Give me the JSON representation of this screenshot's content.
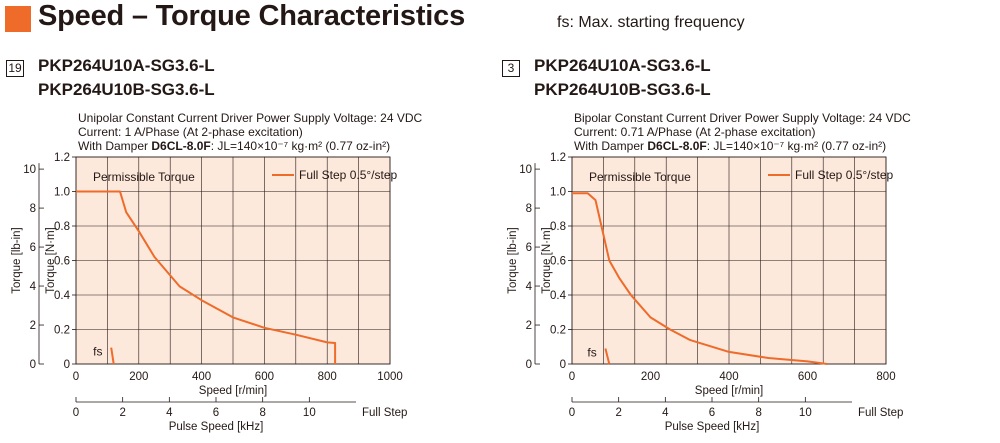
{
  "header": {
    "title": "Speed – Torque Characteristics",
    "subtitle": "fs: Max. starting frequency",
    "accent_color": "#ee6b2a"
  },
  "chart_data": [
    {
      "type": "line",
      "badge": "19",
      "model_line_1": "PKP264U10A-SG3.6-L",
      "model_line_2": "PKP264U10B-SG3.6-L",
      "condition_1": "Unipolar Constant Current Driver  Power Supply Voltage: 24 VDC",
      "condition_2": "Current: 1 A/Phase (At 2-phase excitation)",
      "condition_3_prefix": "With Damper ",
      "condition_3_damper": "D6CL-8.0F",
      "condition_3_suffix": ": JL=140×10⁻⁷ kg·m² (0.77 oz-in²)",
      "region_label": "Permissible Torque",
      "series": [
        {
          "name": "Full Step 0.5°/step",
          "points": [
            [
              0,
              1.0
            ],
            [
              140,
              1.0
            ],
            [
              160,
              0.88
            ],
            [
              200,
              0.77
            ],
            [
              250,
              0.62
            ],
            [
              330,
              0.45
            ],
            [
              400,
              0.37
            ],
            [
              500,
              0.27
            ],
            [
              600,
              0.21
            ],
            [
              700,
              0.17
            ],
            [
              800,
              0.125
            ],
            [
              825,
              0.122
            ],
            [
              825,
              0.0
            ]
          ],
          "color": "#ee6b2a"
        }
      ],
      "fs_label": "fs",
      "fs_points": [
        [
          112,
          0.095
        ],
        [
          120,
          0.0
        ]
      ],
      "xlabel": "Speed [r/min]",
      "xlim": [
        0,
        1000
      ],
      "xticks": [
        0,
        200,
        400,
        600,
        800,
        1000
      ],
      "xgrid_step": 100,
      "ylabel_left": "Torque [lb-in]",
      "ylabel_right": "Torque [N·m]",
      "ylim": [
        0,
        1.2
      ],
      "yticks": [
        0,
        0.2,
        0.4,
        0.6,
        0.8,
        1.0,
        1.2
      ],
      "ytick_labels": [
        "0",
        "0.2",
        "0.4",
        "0.6",
        "0.8",
        "1.0",
        "1.2"
      ],
      "lbin_ticks": [
        0,
        2,
        4,
        6,
        8,
        10
      ],
      "pulse_label": "Pulse Speed [kHz]",
      "pulse_ticks": [
        0,
        2,
        4,
        6,
        8,
        10
      ],
      "pulse_max": 12,
      "full_step_label": "Full Step",
      "grid": true,
      "background_color": "#fde8dc",
      "legend_position": "top-right"
    },
    {
      "type": "line",
      "badge": "3",
      "model_line_1": "PKP264U10A-SG3.6-L",
      "model_line_2": "PKP264U10B-SG3.6-L",
      "condition_1": "Bipolar Constant Current Driver  Power Supply Voltage: 24 VDC",
      "condition_2": "Current: 0.71 A/Phase (At 2-phase excitation)",
      "condition_3_prefix": "With Damper ",
      "condition_3_damper": "D6CL-8.0F",
      "condition_3_suffix": ": JL=140×10⁻⁷ kg·m² (0.77 oz-in²)",
      "region_label": "Permissible Torque",
      "series": [
        {
          "name": "Full Step 0.5°/step",
          "points": [
            [
              0,
              0.99
            ],
            [
              40,
              0.99
            ],
            [
              60,
              0.95
            ],
            [
              80,
              0.75
            ],
            [
              95,
              0.6
            ],
            [
              120,
              0.5
            ],
            [
              150,
              0.4
            ],
            [
              200,
              0.27
            ],
            [
              250,
              0.2
            ],
            [
              300,
              0.14
            ],
            [
              400,
              0.07
            ],
            [
              500,
              0.035
            ],
            [
              600,
              0.015
            ],
            [
              650,
              0.0
            ]
          ],
          "color": "#ee6b2a"
        }
      ],
      "fs_label": "fs",
      "fs_points": [
        [
          85,
          0.09
        ],
        [
          95,
          0.0
        ]
      ],
      "xlabel": "Speed [r/min]",
      "xlim": [
        0,
        800
      ],
      "xticks": [
        0,
        200,
        400,
        600,
        800
      ],
      "xgrid_step": 80,
      "ylabel_left": "Torque [lb-in]",
      "ylabel_right": "Torque [N·m]",
      "ylim": [
        0,
        1.2
      ],
      "yticks": [
        0,
        0.2,
        0.4,
        0.6,
        0.8,
        1.0,
        1.2
      ],
      "ytick_labels": [
        "0",
        "0.2",
        "0.4",
        "0.6",
        "0.8",
        "1.0",
        "1.2"
      ],
      "lbin_ticks": [
        0,
        2,
        4,
        6,
        8,
        10
      ],
      "pulse_label": "Pulse Speed [kHz]",
      "pulse_ticks": [
        0,
        2,
        4,
        6,
        8,
        10
      ],
      "pulse_max": 12,
      "full_step_label": "Full Step",
      "grid": true,
      "background_color": "#fde8dc",
      "legend_position": "top-right"
    }
  ]
}
